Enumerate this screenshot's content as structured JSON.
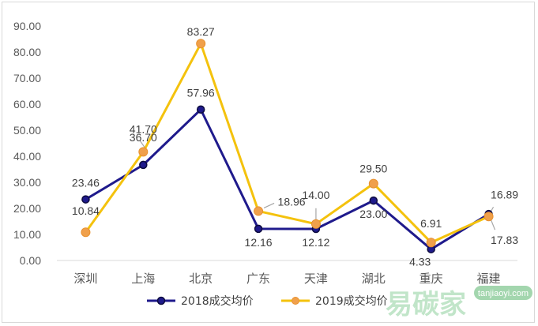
{
  "chart_data": {
    "type": "line",
    "categories": [
      "深圳",
      "上海",
      "北京",
      "广东",
      "天津",
      "湖北",
      "重庆",
      "福建"
    ],
    "series": [
      {
        "name": "2018成交均价",
        "color": "#1f1a8c",
        "values": [
          23.46,
          36.7,
          57.96,
          12.16,
          12.12,
          23.0,
          4.33,
          17.83
        ],
        "labels": [
          "23.46",
          "36.70",
          "57.96",
          "12.16",
          "12.12",
          "23.00",
          "4.33",
          "17.83"
        ]
      },
      {
        "name": "2019成交均价",
        "color": "#f4c20d",
        "marker_color": "#f0a04b",
        "values": [
          10.84,
          41.7,
          83.27,
          18.96,
          14.0,
          29.5,
          6.91,
          16.89
        ],
        "labels": [
          "10.84",
          "41.70",
          "83.27",
          "18.96",
          "14.00",
          "29.50",
          "6.91",
          "16.89"
        ]
      }
    ],
    "y_ticks": [
      "0.00",
      "10.00",
      "20.00",
      "30.00",
      "40.00",
      "50.00",
      "60.00",
      "70.00",
      "80.00",
      "90.00"
    ],
    "ylim": [
      0,
      90
    ],
    "grid": false,
    "legend_position": "bottom",
    "title": "",
    "xlabel": "",
    "ylabel": ""
  },
  "watermark": {
    "text": "易碳家",
    "url_text": "tanjiaoyi.com"
  }
}
